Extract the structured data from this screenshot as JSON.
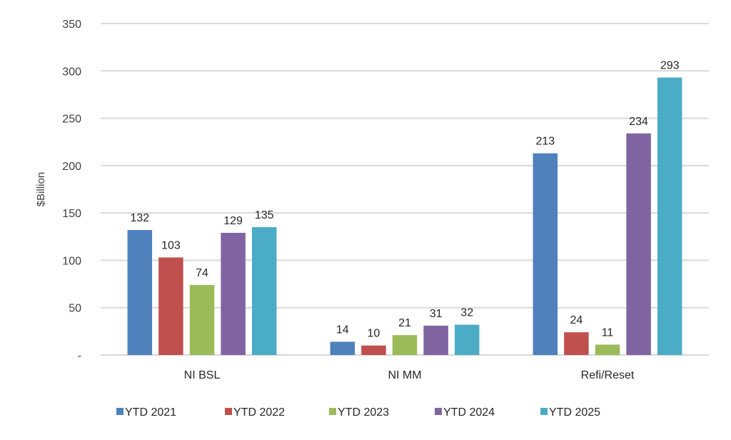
{
  "chart_data": {
    "type": "bar",
    "title": "",
    "xlabel": "",
    "ylabel": "$Billion",
    "ylim": [
      0,
      350
    ],
    "yticks": [
      0,
      50,
      100,
      150,
      200,
      250,
      300,
      350
    ],
    "ytick_labels": [
      "-",
      "50",
      "100",
      "150",
      "200",
      "250",
      "300",
      "350"
    ],
    "grid": true,
    "legend_position": "bottom",
    "categories": [
      "NI BSL",
      "NI MM",
      "Refi/Reset"
    ],
    "series": [
      {
        "name": "YTD 2021",
        "color": "#4F81BD",
        "values": [
          132,
          14,
          213
        ]
      },
      {
        "name": "YTD 2022",
        "color": "#C0504D",
        "values": [
          103,
          10,
          24
        ]
      },
      {
        "name": "YTD 2023",
        "color": "#9BBB59",
        "values": [
          74,
          21,
          11
        ]
      },
      {
        "name": "YTD 2024",
        "color": "#8064A2",
        "values": [
          129,
          31,
          234
        ]
      },
      {
        "name": "YTD 2025",
        "color": "#4BACC6",
        "values": [
          135,
          32,
          293
        ]
      }
    ]
  }
}
